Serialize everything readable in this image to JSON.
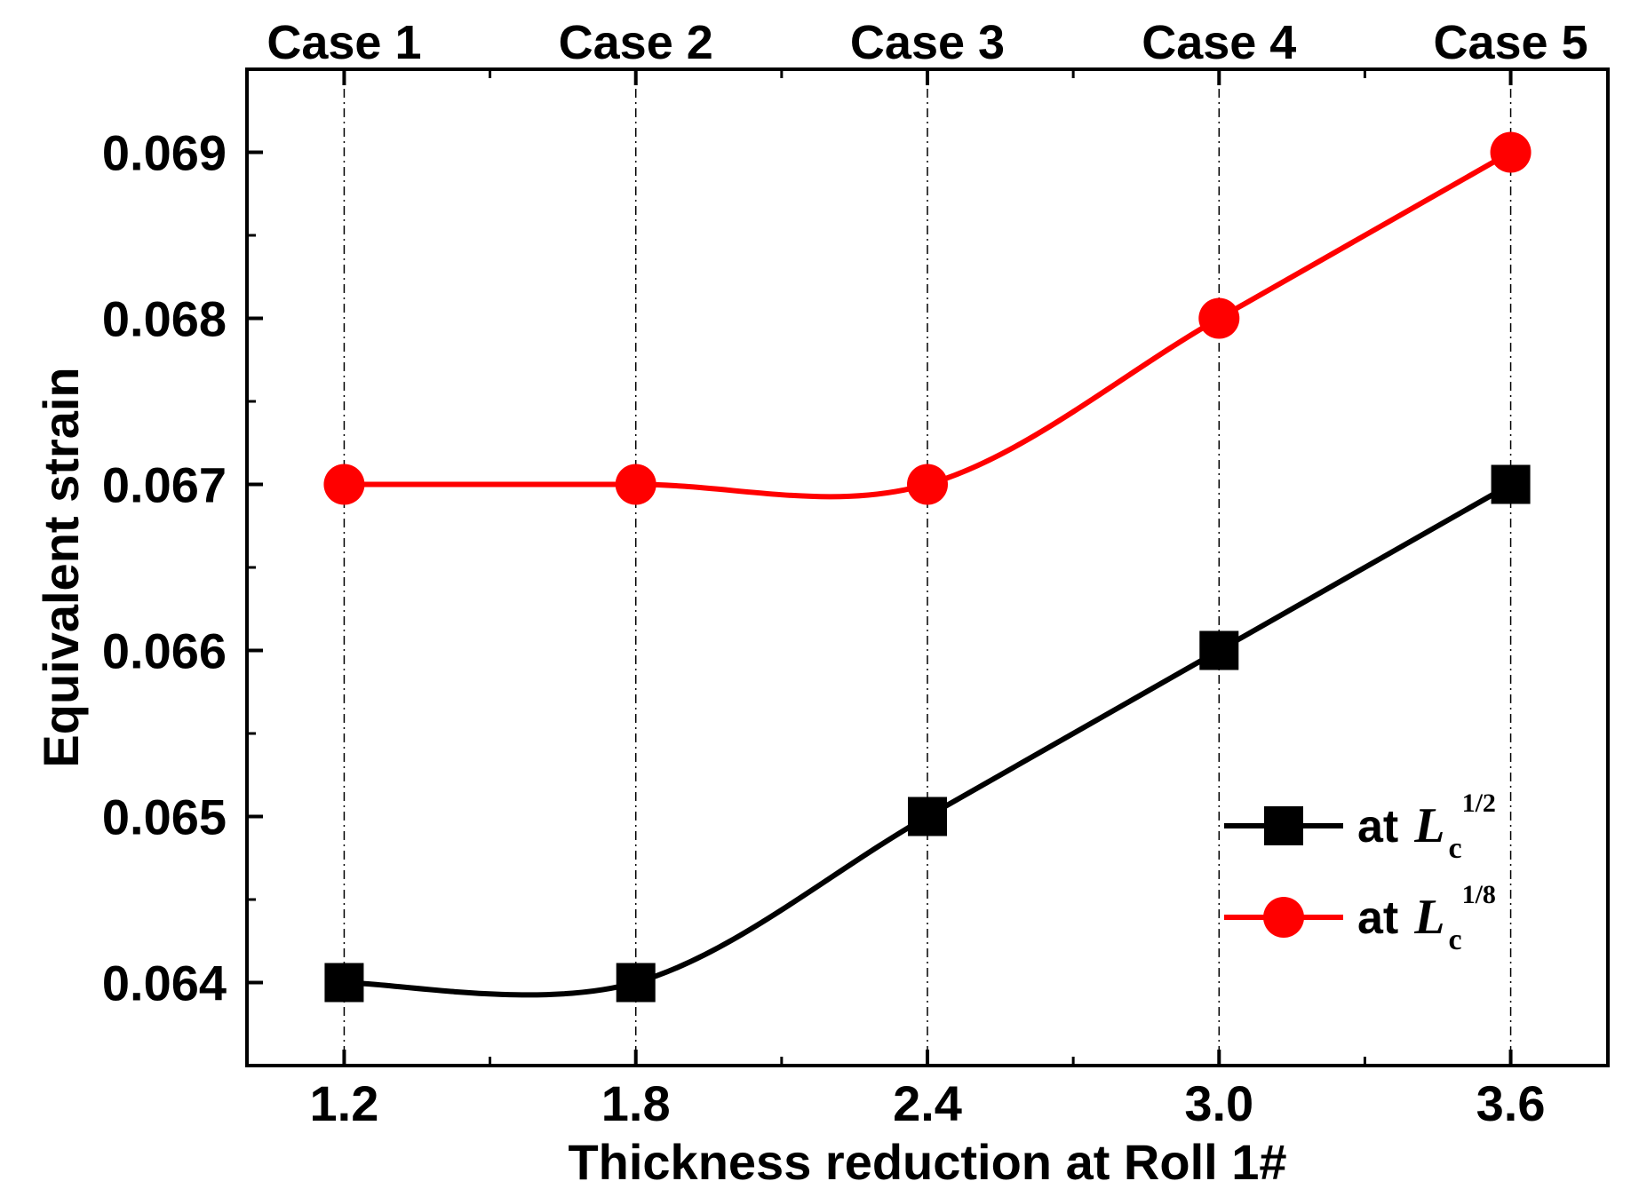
{
  "chart_data": {
    "type": "line",
    "x": [
      1.2,
      1.8,
      2.4,
      3.0,
      3.6
    ],
    "x_tick_labels": [
      "1.2",
      "1.8",
      "2.4",
      "3.0",
      "3.6"
    ],
    "top_labels": [
      "Case 1",
      "Case 2",
      "Case 3",
      "Case 4",
      "Case 5"
    ],
    "y_ticks": [
      0.064,
      0.065,
      0.066,
      0.067,
      0.068,
      0.069
    ],
    "y_tick_labels": [
      "0.064",
      "0.065",
      "0.066",
      "0.067",
      "0.068",
      "0.069"
    ],
    "xlim": [
      1.0,
      3.8
    ],
    "ylim": [
      0.0635,
      0.0695
    ],
    "xlabel": "Thickness reduction at Roll 1#",
    "ylabel": "Equivalent strain",
    "grid": "vertical dash-dot lines at each x",
    "legend_position": "lower-right",
    "series": [
      {
        "name": "at Lc1/2",
        "legend_at": "at",
        "legend_L": "L",
        "legend_sub": "c",
        "legend_sup": "1/2",
        "marker": "square",
        "color": "#000000",
        "values": [
          0.064,
          0.064,
          0.065,
          0.066,
          0.067
        ]
      },
      {
        "name": "at Lc1/8",
        "legend_at": "at",
        "legend_L": "L",
        "legend_sub": "c",
        "legend_sup": "1/8",
        "marker": "circle",
        "color": "#ff0000",
        "values": [
          0.067,
          0.067,
          0.067,
          0.068,
          0.069
        ]
      }
    ]
  }
}
